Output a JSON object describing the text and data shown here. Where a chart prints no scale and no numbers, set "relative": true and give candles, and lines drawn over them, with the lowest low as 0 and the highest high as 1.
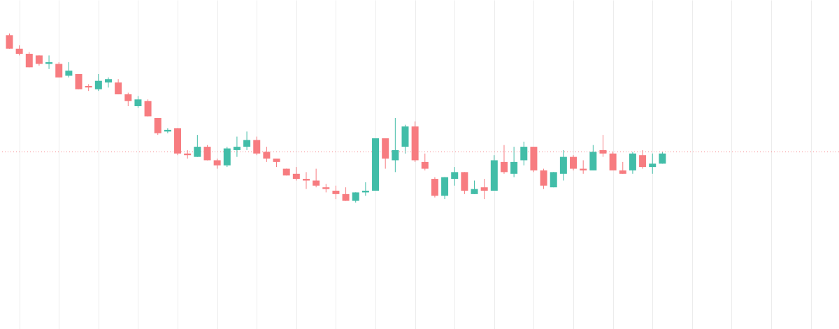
{
  "chart_data": {
    "type": "candlestick",
    "relative": true,
    "grid": "x",
    "categories": [
      null,
      null,
      null,
      null,
      null,
      null,
      null,
      null,
      null,
      null,
      null,
      null,
      null,
      null,
      null,
      null,
      null,
      null,
      null,
      null,
      null,
      null,
      null,
      null,
      null,
      null,
      null,
      null,
      null,
      null,
      null,
      null,
      null,
      null,
      null,
      null,
      null,
      null,
      null,
      null,
      null,
      null,
      null,
      null,
      null,
      null,
      null,
      null,
      null,
      null,
      null,
      null,
      null,
      null,
      null,
      null,
      null,
      null,
      null,
      null,
      null,
      null,
      null,
      null,
      null,
      null,
      null
    ],
    "ohlc": [
      [
        0.99,
        1,
        0.91,
        0.91
      ],
      [
        0.91,
        0.93,
        0.87,
        0.88
      ],
      [
        0.88,
        0.89,
        0.8,
        0.8
      ],
      [
        0.87,
        0.87,
        0.81,
        0.82
      ],
      [
        0.82,
        0.87,
        0.79,
        0.83
      ],
      [
        0.82,
        0.83,
        0.74,
        0.74
      ],
      [
        0.75,
        0.83,
        0.74,
        0.78
      ],
      [
        0.76,
        0.76,
        0.67,
        0.67
      ],
      [
        0.69,
        0.7,
        0.66,
        0.68
      ],
      [
        0.67,
        0.76,
        0.66,
        0.72
      ],
      [
        0.71,
        0.74,
        0.68,
        0.73
      ],
      [
        0.71,
        0.73,
        0.64,
        0.64
      ],
      [
        0.64,
        0.65,
        0.57,
        0.6
      ],
      [
        0.57,
        0.63,
        0.56,
        0.61
      ],
      [
        0.6,
        0.61,
        0.51,
        0.51
      ],
      [
        0.5,
        0.5,
        0.4,
        0.41
      ],
      [
        0.42,
        0.44,
        0.41,
        0.43
      ],
      [
        0.44,
        0.44,
        0.28,
        0.29
      ],
      [
        0.29,
        0.31,
        0.26,
        0.28
      ],
      [
        0.27,
        0.4,
        0.27,
        0.33
      ],
      [
        0.33,
        0.34,
        0.25,
        0.25
      ],
      [
        0.25,
        0.26,
        0.2,
        0.22
      ],
      [
        0.22,
        0.33,
        0.21,
        0.32
      ],
      [
        0.31,
        0.39,
        0.27,
        0.33
      ],
      [
        0.33,
        0.42,
        0.31,
        0.37
      ],
      [
        0.37,
        0.39,
        0.28,
        0.29
      ],
      [
        0.3,
        0.33,
        0.24,
        0.26
      ],
      [
        0.26,
        0.26,
        0.21,
        0.24
      ],
      [
        0.2,
        0.2,
        0.16,
        0.16
      ],
      [
        0.17,
        0.21,
        0.13,
        0.14
      ],
      [
        0.14,
        0.18,
        0.08,
        0.13
      ],
      [
        0.13,
        0.2,
        0.09,
        0.1
      ],
      [
        0.09,
        0.11,
        0.06,
        0.08
      ],
      [
        0.07,
        0.1,
        0.02,
        0.05
      ],
      [
        0.05,
        0.09,
        0.01,
        0.01
      ],
      [
        0.01,
        0.06,
        0,
        0.06
      ],
      [
        0.06,
        0.12,
        0.04,
        0.07
      ],
      [
        0.07,
        0.38,
        0.07,
        0.38
      ],
      [
        0.38,
        0.38,
        0.2,
        0.26
      ],
      [
        0.25,
        0.5,
        0.18,
        0.31
      ],
      [
        0.33,
        0.46,
        0.29,
        0.45
      ],
      [
        0.45,
        0.48,
        0.24,
        0.25
      ],
      [
        0.24,
        0.29,
        0.19,
        0.2
      ],
      [
        0.14,
        0.15,
        0.03,
        0.04
      ],
      [
        0.04,
        0.15,
        0.02,
        0.15
      ],
      [
        0.14,
        0.21,
        0.1,
        0.18
      ],
      [
        0.18,
        0.18,
        0.05,
        0.07
      ],
      [
        0.05,
        0.13,
        0.05,
        0.08
      ],
      [
        0.09,
        0.14,
        0.02,
        0.07
      ],
      [
        0.07,
        0.28,
        0.07,
        0.25
      ],
      [
        0.24,
        0.34,
        0.17,
        0.18
      ],
      [
        0.17,
        0.33,
        0.15,
        0.24
      ],
      [
        0.25,
        0.36,
        0.22,
        0.33
      ],
      [
        0.33,
        0.33,
        0.18,
        0.19
      ],
      [
        0.19,
        0.2,
        0.08,
        0.1
      ],
      [
        0.09,
        0.18,
        0.09,
        0.18
      ],
      [
        0.17,
        0.31,
        0.13,
        0.27
      ],
      [
        0.27,
        0.28,
        0.19,
        0.2
      ],
      [
        0.2,
        0.25,
        0.17,
        0.19
      ],
      [
        0.19,
        0.34,
        0.19,
        0.3
      ],
      [
        0.31,
        0.4,
        0.27,
        0.29
      ],
      [
        0.29,
        0.3,
        0.19,
        0.19
      ],
      [
        0.19,
        0.24,
        0.17,
        0.17
      ],
      [
        0.19,
        0.3,
        0.17,
        0.29
      ],
      [
        0.28,
        0.31,
        0.2,
        0.21
      ],
      [
        0.21,
        0.29,
        0.17,
        0.23
      ],
      [
        0.23,
        0.3,
        0.23,
        0.29
      ]
    ],
    "colors": [
      "#f77c80",
      "#f77c80",
      "#f77c80",
      "#f77c80",
      "#42bda8",
      "#f77c80",
      "#42bda8",
      "#f77c80",
      "#f77c80",
      "#42bda8",
      "#42bda8",
      "#f77c80",
      "#f77c80",
      "#42bda8",
      "#f77c80",
      "#f77c80",
      "#42bda8",
      "#f77c80",
      "#f77c80",
      "#42bda8",
      "#f77c80",
      "#f77c80",
      "#42bda8",
      "#42bda8",
      "#42bda8",
      "#f77c80",
      "#f77c80",
      "#f77c80",
      "#f77c80",
      "#f77c80",
      "#f77c80",
      "#f77c80",
      "#f77c80",
      "#f77c80",
      "#f77c80",
      "#42bda8",
      "#42bda8",
      "#42bda8",
      "#f77c80",
      "#42bda8",
      "#42bda8",
      "#f77c80",
      "#f77c80",
      "#f77c80",
      "#42bda8",
      "#42bda8",
      "#f77c80",
      "#42bda8",
      "#f77c80",
      "#42bda8",
      "#f77c80",
      "#42bda8",
      "#42bda8",
      "#f77c80",
      "#f77c80",
      "#42bda8",
      "#42bda8",
      "#f77c80",
      "#f77c80",
      "#42bda8",
      "#f77c80",
      "#f77c80",
      "#f77c80",
      "#42bda8",
      "#f77c80",
      "#42bda8",
      "#42bda8"
    ],
    "ref_lines": [
      {
        "axis": "y",
        "value": 0.3,
        "color": "#f77c80",
        "line_style": "dotted"
      }
    ]
  }
}
